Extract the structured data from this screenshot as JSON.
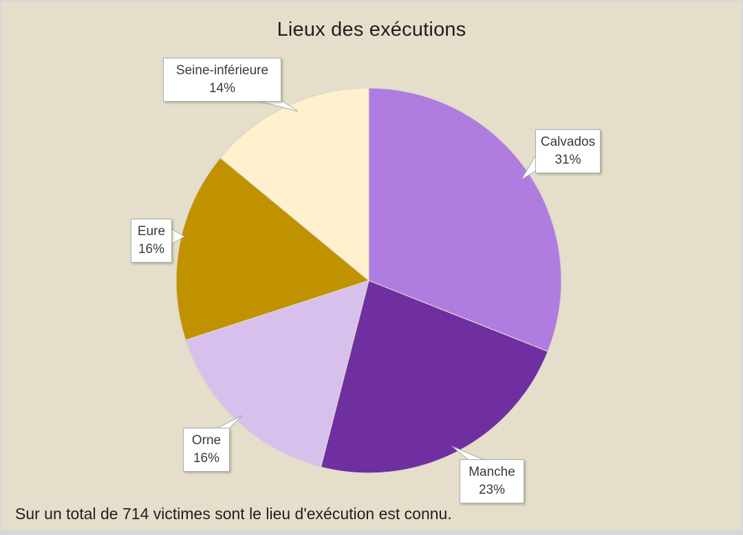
{
  "title": "Lieux des exécutions",
  "footnote": "Sur un total de 714 victimes sont le lieu d'exécution est connu.",
  "colors": {
    "background": "#e4decb",
    "frame_border": "#d7d7da",
    "slice_stroke": "#ddd7c8",
    "callout_bg": "#ffffff",
    "callout_border": "#ababab"
  },
  "chart_data": {
    "type": "pie",
    "title": "Lieux des exécutions",
    "unit": "percent",
    "start_angle_deg": 0,
    "direction": "clockwise",
    "legend": "none",
    "label_style": "callout boxes with category name and percent",
    "slices": [
      {
        "label": "Calvados",
        "value": 31,
        "percent_label": "31%",
        "color": "#af7ce0"
      },
      {
        "label": "Manche",
        "value": 23,
        "percent_label": "23%",
        "color": "#6f2fa0"
      },
      {
        "label": "Orne",
        "value": 16,
        "percent_label": "16%",
        "color": "#d8c0ec"
      },
      {
        "label": "Eure",
        "value": 16,
        "percent_label": "16%",
        "color": "#c09200"
      },
      {
        "label": "Seine-inférieure",
        "value": 14,
        "percent_label": "14%",
        "color": "#fff1ce"
      }
    ],
    "footnote": "Sur un total de 714 victimes sont le lieu d'exécution est connu."
  }
}
